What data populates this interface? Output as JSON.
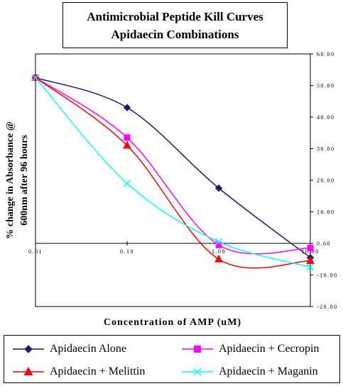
{
  "chart_data": {
    "type": "line",
    "title": [
      "Antimicrobial Peptide Kill Curves",
      "Apidaecin Combinations"
    ],
    "xlabel": "Concentration of AMP (uM)",
    "ylabel": [
      "% change in Absorbance @",
      "600nm after 96 hours"
    ],
    "x_scale": "log",
    "xlim": [
      0.01,
      10
    ],
    "ylim": [
      -20,
      60
    ],
    "x_ticks": [
      0.01,
      0.1,
      1,
      10
    ],
    "x_tick_labels": [
      "0.01",
      "0.10",
      "1.00",
      "10.00"
    ],
    "y_ticks": [
      -20,
      -10,
      0,
      10,
      20,
      30,
      40,
      50,
      60
    ],
    "y_tick_labels": [
      "-20.00",
      "-10.00",
      "0.00",
      "10.00",
      "20.00",
      "30.00",
      "40.00",
      "50.00",
      "60.00"
    ],
    "grid": false,
    "legend_position": "bottom",
    "series": [
      {
        "name": "Apidaecin Alone",
        "color": "#1a1a7a",
        "marker": "diamond",
        "x": [
          0.01,
          0.1,
          1,
          10
        ],
        "y": [
          52.5,
          43,
          17.5,
          -4.5
        ]
      },
      {
        "name": "Apidaecin + Cecropin",
        "color": "#ff00ff",
        "marker": "square",
        "x": [
          0.01,
          0.1,
          1,
          10
        ],
        "y": [
          52.5,
          33.5,
          -0.5,
          -1.5
        ]
      },
      {
        "name": "Apidaecin + Melittin",
        "color": "#ff0000",
        "marker": "triangle",
        "x": [
          0.01,
          0.1,
          1,
          10
        ],
        "y": [
          52.5,
          31,
          -5,
          -5.5
        ]
      },
      {
        "name": "Apidaecin + Maganin",
        "color": "#00ffff",
        "marker": "x",
        "x": [
          0.01,
          0.1,
          1,
          10
        ],
        "y": [
          52.5,
          19,
          0.5,
          -7.5
        ]
      }
    ]
  }
}
